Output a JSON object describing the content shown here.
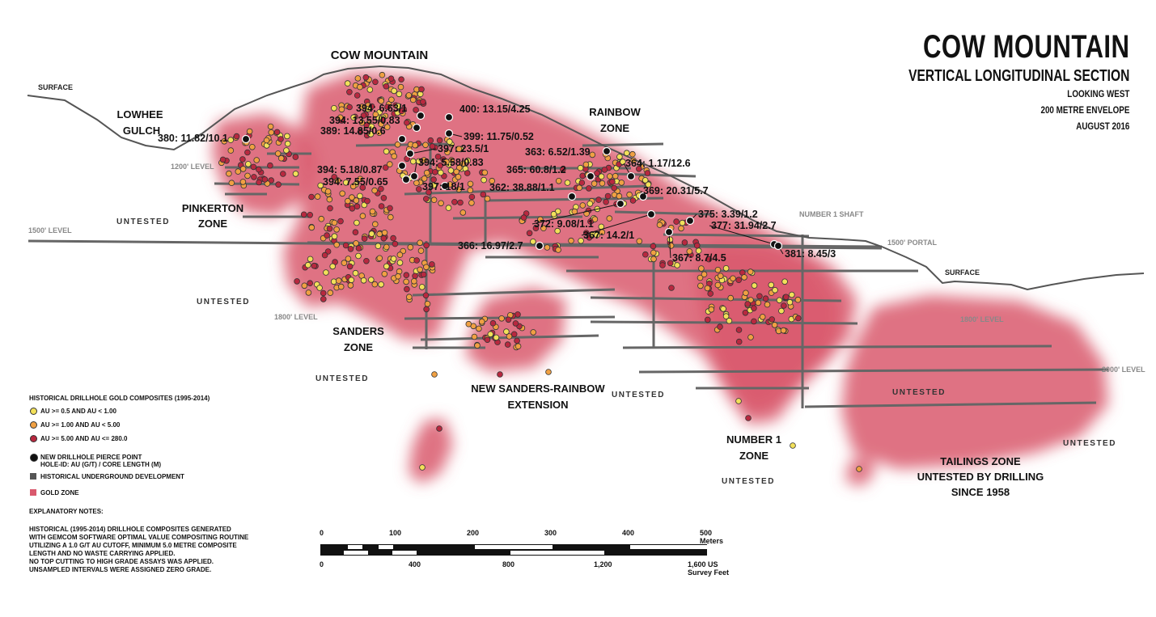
{
  "title": {
    "main": "COW MOUNTAIN",
    "sub": "VERTICAL LONGITUDINAL SECTION",
    "lines": [
      "LOOKING WEST",
      "200 METRE ENVELOPE",
      "AUGUST 2016"
    ]
  },
  "colors": {
    "gold_zone": "#d9596d",
    "low_grade": "#f2e05a",
    "mid_grade": "#f0a043",
    "high_grade": "#b8283f",
    "pierce": "#111111",
    "development": "#666666",
    "surface": "#555555"
  },
  "area_labels": {
    "cow_mountain": "COW MOUNTAIN",
    "lowhee1": "LOWHEE",
    "lowhee2": "GULCH",
    "pinkerton1": "PINKERTON",
    "pinkerton2": "ZONE",
    "rainbow1": "RAINBOW",
    "rainbow2": "ZONE",
    "sanders1": "SANDERS",
    "sanders2": "ZONE",
    "nsr1": "NEW SANDERS-RAINBOW",
    "nsr2": "EXTENSION",
    "number1a": "NUMBER 1",
    "number1b": "ZONE",
    "tailings1": "TAILINGS ZONE",
    "tailings2": "UNTESTED BY DRILLING",
    "tailings3": "SINCE 1958",
    "untested": "UNTESTED"
  },
  "level_labels": {
    "surface_left": "SURFACE",
    "surface_right": "SURFACE",
    "l1200": "1200' LEVEL",
    "l1500": "1500' LEVEL",
    "l1800": "1800' LEVEL",
    "l1800r": "1800' LEVEL",
    "l2000": "2000' LEVEL",
    "portal": "1500' PORTAL",
    "shaft": "NUMBER 1 SHAFT"
  },
  "pierce_points": [
    "380: 11.82/10.1",
    "394: 6.63/1",
    "400: 13.15/4.25",
    "394: 13.55/0.83",
    "389: 14.85/0.6",
    "399: 11.75/0.52",
    "397: 23.5/1",
    "363: 6.52/1.39",
    "364: 1.17/12.6",
    "394: 5.18/0.87",
    "394: 5.58/0.83",
    "365: 60.8/1.2",
    "394: 7.55/0.65",
    "397: 18/1",
    "362: 38.88/1.1",
    "369: 20.31/5.7",
    "375: 3.39/1.2",
    "372: 9.08/1.1",
    "377: 31.94/2.7",
    "367: 14.2/1",
    "366: 16.97/2.7",
    "367: 8.7/4.5",
    "381: 8.45/3"
  ],
  "legend": {
    "header": "HISTORICAL DRILLHOLE GOLD COMPOSITES (1995-2014)",
    "low": "AU >= 0.5  AND  AU < 1.00",
    "mid": "AU >= 1.00  AND  AU < 5.00",
    "high": "AU >= 5.00  AND  AU <= 280.0",
    "pierce1": "NEW DRILLHOLE PIERCE POINT",
    "pierce2": "HOLE-ID: AU (G/T) / CORE LENGTH (M)",
    "development": "HISTORICAL UNDERGROUND DEVELOPMENT",
    "gold_zone": "GOLD ZONE"
  },
  "notes": {
    "header": "EXPLANATORY NOTES:",
    "lines": [
      "HISTORICAL (1995-2014) DRILLHOLE COMPOSITES GENERATED",
      "WITH GEMCOM SOFTWARE OPTIMAL VALUE COMPOSITING ROUTINE",
      "UTILIZING A 1.0 G/T AU CUTOFF, MINIMUM 5.0 METRE COMPOSITE",
      "LENGTH AND NO WASTE CARRYING APPLIED.",
      "NO TOP CUTTING TO HIGH GRADE ASSAYS WAS APPLIED.",
      "UNSAMPLED INTERVALS WERE ASSIGNED ZERO GRADE."
    ]
  },
  "scale": {
    "m0": "0",
    "m100": "100",
    "m200": "200",
    "m300": "300",
    "m400": "400",
    "m500": "500 Meters",
    "f0": "0",
    "f400": "400",
    "f800": "800",
    "f1200": "1,200",
    "f1600": "1,600 US Survey Feet"
  }
}
